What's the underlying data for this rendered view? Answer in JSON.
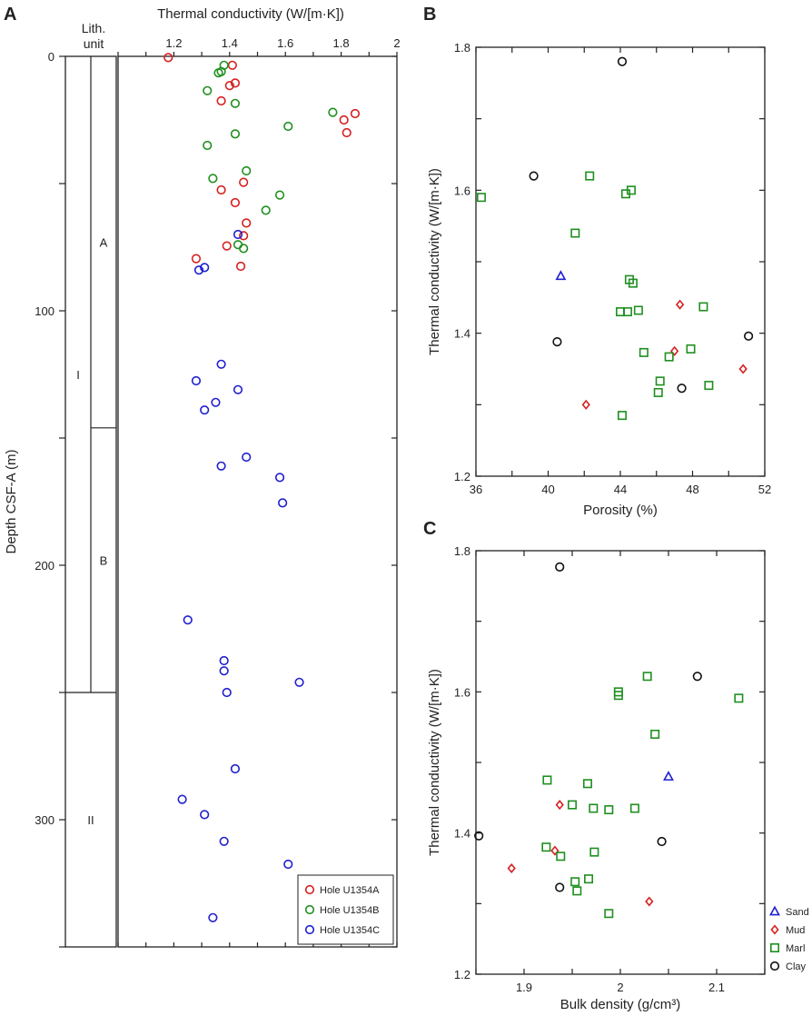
{
  "figure": {
    "panel_labels": [
      "A",
      "B",
      "C"
    ]
  },
  "chart_data": [
    {
      "panel": "A",
      "type": "scatter",
      "xlabel": "Thermal conductivity (W/[m·K])",
      "ylabel": "Depth CSF-A (m)",
      "xlim": [
        1.0,
        2.0
      ],
      "ylim": [
        350,
        0
      ],
      "x_axis_position": "top",
      "xticks": [
        1.2,
        1.4,
        1.6,
        1.8,
        2.0
      ],
      "yticks": [
        0,
        100,
        200,
        300
      ],
      "lithology": {
        "header": [
          "Lith.",
          "unit"
        ],
        "units": [
          {
            "label": "I",
            "top": 0,
            "bottom": 250
          },
          {
            "label": "II",
            "top": 250,
            "bottom": 350
          }
        ],
        "subunits": [
          {
            "label": "A",
            "top": 0,
            "bottom": 146
          },
          {
            "label": "B",
            "top": 146,
            "bottom": 250
          }
        ]
      },
      "series": [
        {
          "name": "Hole U1354A",
          "color": "#d62020",
          "marker": "circle",
          "points": [
            [
              1.18,
              0.5
            ],
            [
              1.41,
              3.5
            ],
            [
              1.4,
              11.5
            ],
            [
              1.42,
              10.5
            ],
            [
              1.37,
              17.5
            ],
            [
              1.85,
              22.5
            ],
            [
              1.81,
              25
            ],
            [
              1.82,
              30
            ],
            [
              1.45,
              49.5
            ],
            [
              1.37,
              52.5
            ],
            [
              1.42,
              57.5
            ],
            [
              1.46,
              65.5
            ],
            [
              1.45,
              70.5
            ],
            [
              1.39,
              74.5
            ],
            [
              1.28,
              79.5
            ],
            [
              1.44,
              82.5
            ]
          ]
        },
        {
          "name": "Hole U1354B",
          "color": "#1f8f1f",
          "marker": "circle",
          "points": [
            [
              1.38,
              3.5
            ],
            [
              1.37,
              6
            ],
            [
              1.36,
              6.5
            ],
            [
              1.32,
              13.5
            ],
            [
              1.42,
              18.5
            ],
            [
              1.77,
              22
            ],
            [
              1.61,
              27.5
            ],
            [
              1.42,
              30.5
            ],
            [
              1.32,
              35
            ],
            [
              1.46,
              45
            ],
            [
              1.34,
              48
            ],
            [
              1.58,
              54.5
            ],
            [
              1.53,
              60.5
            ],
            [
              1.43,
              74
            ],
            [
              1.45,
              75.5
            ]
          ]
        },
        {
          "name": "Hole U1354C",
          "color": "#1f1fd0",
          "marker": "circle",
          "points": [
            [
              1.43,
              70
            ],
            [
              1.31,
              83
            ],
            [
              1.29,
              84
            ],
            [
              1.37,
              121
            ],
            [
              1.28,
              127.5
            ],
            [
              1.43,
              131
            ],
            [
              1.35,
              136
            ],
            [
              1.31,
              139
            ],
            [
              1.46,
              157.5
            ],
            [
              1.37,
              161
            ],
            [
              1.58,
              165.5
            ],
            [
              1.59,
              175.5
            ],
            [
              1.25,
              221.5
            ],
            [
              1.38,
              237.5
            ],
            [
              1.38,
              241.5
            ],
            [
              1.39,
              250
            ],
            [
              1.65,
              246
            ],
            [
              1.42,
              280
            ],
            [
              1.23,
              292
            ],
            [
              1.31,
              298
            ],
            [
              1.38,
              308.5
            ],
            [
              1.61,
              317.5
            ],
            [
              1.34,
              338.5
            ]
          ]
        }
      ],
      "legend": {
        "position": "bottom-right",
        "entries": [
          "Hole U1354A",
          "Hole U1354B",
          "Hole U1354C"
        ]
      }
    },
    {
      "panel": "B",
      "type": "scatter",
      "xlabel": "Porosity (%)",
      "ylabel": "Thermal conductivity (W/[m·K])",
      "xlim": [
        36,
        52
      ],
      "ylim": [
        1.2,
        1.8
      ],
      "xticks": [
        36,
        40,
        44,
        48,
        52
      ],
      "yticks": [
        1.2,
        1.4,
        1.6,
        1.8
      ],
      "series": [
        {
          "name": "Sand",
          "color": "#1f1fd0",
          "marker": "triangle",
          "points": [
            [
              40.7,
              1.48
            ]
          ]
        },
        {
          "name": "Mud",
          "color": "#d62020",
          "marker": "diamond",
          "points": [
            [
              47.3,
              1.44
            ],
            [
              47.0,
              1.375
            ],
            [
              50.8,
              1.35
            ],
            [
              42.1,
              1.3
            ]
          ]
        },
        {
          "name": "Marl",
          "color": "#1f8f1f",
          "marker": "square",
          "points": [
            [
              36.3,
              1.59
            ],
            [
              42.3,
              1.62
            ],
            [
              44.6,
              1.6
            ],
            [
              44.3,
              1.595
            ],
            [
              41.5,
              1.54
            ],
            [
              44.5,
              1.475
            ],
            [
              44.7,
              1.47
            ],
            [
              44.0,
              1.43
            ],
            [
              44.4,
              1.43
            ],
            [
              45.0,
              1.432
            ],
            [
              48.6,
              1.437
            ],
            [
              45.3,
              1.373
            ],
            [
              46.7,
              1.367
            ],
            [
              47.9,
              1.378
            ],
            [
              46.2,
              1.333
            ],
            [
              46.1,
              1.317
            ],
            [
              48.9,
              1.327
            ],
            [
              44.1,
              1.285
            ]
          ]
        },
        {
          "name": "Clay",
          "color": "#111111",
          "marker": "circle",
          "points": [
            [
              44.1,
              1.78
            ],
            [
              39.2,
              1.62
            ],
            [
              40.5,
              1.388
            ],
            [
              47.4,
              1.323
            ],
            [
              51.1,
              1.396
            ]
          ]
        }
      ]
    },
    {
      "panel": "C",
      "type": "scatter",
      "xlabel": "Bulk density (g/cm³)",
      "ylabel": "Thermal conductivity (W/[m·K])",
      "xlim": [
        1.85,
        2.15
      ],
      "ylim": [
        1.2,
        1.8
      ],
      "xticks": [
        1.9,
        2.0,
        2.1
      ],
      "yticks": [
        1.2,
        1.4,
        1.6,
        1.8
      ],
      "series": [
        {
          "name": "Sand",
          "color": "#1f1fd0",
          "marker": "triangle",
          "points": [
            [
              2.05,
              1.48
            ]
          ]
        },
        {
          "name": "Mud",
          "color": "#d62020",
          "marker": "diamond",
          "points": [
            [
              1.937,
              1.44
            ],
            [
              1.932,
              1.375
            ],
            [
              1.887,
              1.35
            ],
            [
              2.03,
              1.303
            ]
          ]
        },
        {
          "name": "Marl",
          "color": "#1f8f1f",
          "marker": "square",
          "points": [
            [
              2.028,
              1.622
            ],
            [
              1.998,
              1.6
            ],
            [
              1.998,
              1.595
            ],
            [
              2.123,
              1.591
            ],
            [
              2.036,
              1.54
            ],
            [
              1.924,
              1.475
            ],
            [
              1.966,
              1.47
            ],
            [
              1.95,
              1.44
            ],
            [
              1.972,
              1.435
            ],
            [
              1.988,
              1.433
            ],
            [
              2.015,
              1.435
            ],
            [
              1.923,
              1.38
            ],
            [
              1.973,
              1.373
            ],
            [
              1.938,
              1.367
            ],
            [
              1.967,
              1.335
            ],
            [
              1.953,
              1.331
            ],
            [
              1.955,
              1.318
            ],
            [
              1.988,
              1.286
            ]
          ]
        },
        {
          "name": "Clay",
          "color": "#111111",
          "marker": "circle",
          "points": [
            [
              1.937,
              1.777
            ],
            [
              2.08,
              1.622
            ],
            [
              1.853,
              1.396
            ],
            [
              2.043,
              1.388
            ],
            [
              1.937,
              1.323
            ]
          ]
        }
      ],
      "legend": {
        "position": "right-outside",
        "entries": [
          "Sand",
          "Mud",
          "Marl",
          "Clay"
        ]
      }
    }
  ]
}
